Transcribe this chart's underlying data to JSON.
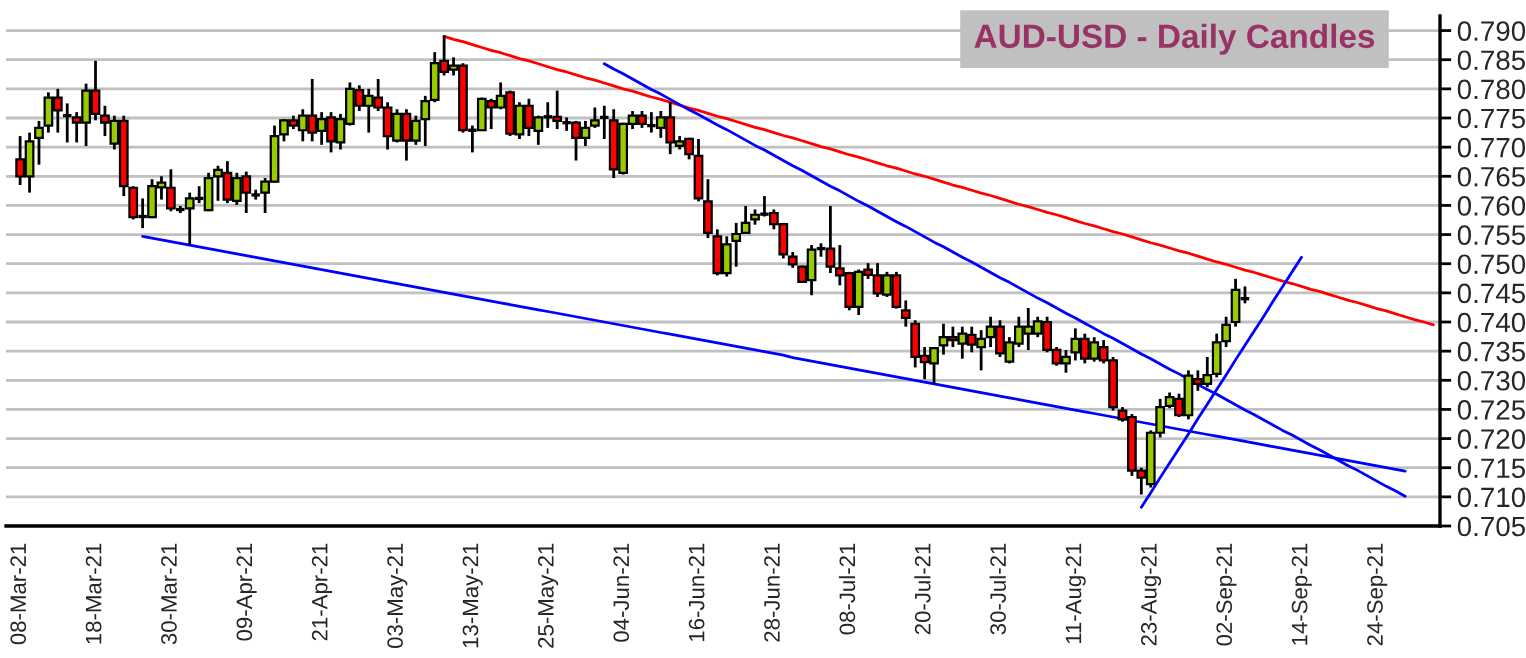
{
  "chart_data": {
    "type": "candlestick",
    "title": "AUD-USD - Daily Candles",
    "categories": [
      "08-Mar-21",
      null,
      null,
      null,
      null,
      null,
      null,
      null,
      "18-Mar-21",
      null,
      null,
      null,
      null,
      null,
      null,
      null,
      "30-Mar-21",
      null,
      null,
      null,
      null,
      null,
      null,
      null,
      "09-Apr-21",
      null,
      null,
      null,
      null,
      null,
      null,
      null,
      "21-Apr-21",
      null,
      null,
      null,
      null,
      null,
      null,
      null,
      "03-May-21",
      null,
      null,
      null,
      null,
      null,
      null,
      null,
      "13-May-21",
      null,
      null,
      null,
      null,
      null,
      null,
      null,
      "25-May-21",
      null,
      null,
      null,
      null,
      null,
      null,
      null,
      "04-Jun-21",
      null,
      null,
      null,
      null,
      null,
      null,
      null,
      "16-Jun-21",
      null,
      null,
      null,
      null,
      null,
      null,
      null,
      "28-Jun-21",
      null,
      null,
      null,
      null,
      null,
      null,
      null,
      "08-Jul-21",
      null,
      null,
      null,
      null,
      null,
      null,
      null,
      "20-Jul-21",
      null,
      null,
      null,
      null,
      null,
      null,
      null,
      "30-Jul-21",
      null,
      null,
      null,
      null,
      null,
      null,
      null,
      "11-Aug-21",
      null,
      null,
      null,
      null,
      null,
      null,
      null,
      "23-Aug-21",
      null,
      null,
      null,
      null,
      null,
      null,
      null,
      "02-Sep-21",
      null,
      null,
      null,
      null,
      null,
      null,
      null,
      "14-Sep-21",
      null,
      null,
      null,
      null,
      null,
      null,
      null,
      "24-Sep-21",
      null,
      null,
      null,
      null,
      null,
      null
    ],
    "ohlc": [
      [
        0.7679,
        0.7719,
        0.7635,
        0.765
      ],
      [
        0.765,
        0.7725,
        0.7622,
        0.771
      ],
      [
        0.7716,
        0.7745,
        0.767,
        0.7733
      ],
      [
        0.7737,
        0.7794,
        0.7725,
        0.7785
      ],
      [
        0.7785,
        0.78,
        0.7725,
        0.7763
      ],
      [
        0.7754,
        0.7775,
        0.7708,
        0.7754
      ],
      [
        0.7751,
        0.776,
        0.7708,
        0.7742
      ],
      [
        0.7742,
        0.7809,
        0.7702,
        0.7797
      ],
      [
        0.7797,
        0.7848,
        0.7746,
        0.7757
      ],
      [
        0.7754,
        0.7771,
        0.7719,
        0.7742
      ],
      [
        0.7706,
        0.7754,
        0.7696,
        0.7745
      ],
      [
        0.7745,
        0.7754,
        0.7616,
        0.7633
      ],
      [
        0.763,
        0.7633,
        0.7576,
        0.758
      ],
      [
        0.7581,
        0.7612,
        0.7561,
        0.7581
      ],
      [
        0.758,
        0.7645,
        0.7578,
        0.7633
      ],
      [
        0.7631,
        0.765,
        0.761,
        0.7639
      ],
      [
        0.763,
        0.7662,
        0.759,
        0.7595
      ],
      [
        0.7593,
        0.7599,
        0.7587,
        0.7593
      ],
      [
        0.7595,
        0.7622,
        0.7532,
        0.7612
      ],
      [
        0.7612,
        0.7633,
        0.7604,
        0.7612
      ],
      [
        0.7592,
        0.7656,
        0.759,
        0.7647
      ],
      [
        0.765,
        0.7668,
        0.7608,
        0.7661
      ],
      [
        0.7656,
        0.7676,
        0.7604,
        0.761
      ],
      [
        0.7608,
        0.7656,
        0.7601,
        0.7647
      ],
      [
        0.765,
        0.7658,
        0.7587,
        0.7622
      ],
      [
        0.7618,
        0.7627,
        0.761,
        0.7618
      ],
      [
        0.7622,
        0.7647,
        0.7587,
        0.7641
      ],
      [
        0.7641,
        0.7737,
        0.7639,
        0.7719
      ],
      [
        0.7722,
        0.7748,
        0.771,
        0.7746
      ],
      [
        0.7746,
        0.7754,
        0.7731,
        0.7737
      ],
      [
        0.7729,
        0.7765,
        0.771,
        0.7754
      ],
      [
        0.7754,
        0.7817,
        0.771,
        0.7725
      ],
      [
        0.7728,
        0.776,
        0.7704,
        0.7748
      ],
      [
        0.7751,
        0.776,
        0.7691,
        0.771
      ],
      [
        0.7708,
        0.7757,
        0.7696,
        0.7748
      ],
      [
        0.774,
        0.7811,
        0.7737,
        0.78
      ],
      [
        0.7798,
        0.7806,
        0.7762,
        0.7771
      ],
      [
        0.7771,
        0.78,
        0.7725,
        0.7788
      ],
      [
        0.7785,
        0.7817,
        0.7762,
        0.7768
      ],
      [
        0.7768,
        0.7777,
        0.7696,
        0.7719
      ],
      [
        0.7711,
        0.7765,
        0.7708,
        0.7757
      ],
      [
        0.7757,
        0.7765,
        0.7677,
        0.7711
      ],
      [
        0.7711,
        0.7754,
        0.7704,
        0.7745
      ],
      [
        0.7748,
        0.7788,
        0.7702,
        0.7779
      ],
      [
        0.7781,
        0.7863,
        0.7777,
        0.7844
      ],
      [
        0.7848,
        0.7892,
        0.7823,
        0.7829
      ],
      [
        0.7833,
        0.7854,
        0.7823,
        0.784
      ],
      [
        0.784,
        0.7844,
        0.7725,
        0.7729
      ],
      [
        0.7729,
        0.7737,
        0.7691,
        0.7729
      ],
      [
        0.7729,
        0.7785,
        0.7728,
        0.7783
      ],
      [
        0.7779,
        0.7783,
        0.7731,
        0.7768
      ],
      [
        0.7768,
        0.7811,
        0.7765,
        0.7788
      ],
      [
        0.7794,
        0.7797,
        0.7719,
        0.7723
      ],
      [
        0.7722,
        0.7777,
        0.7714,
        0.7771
      ],
      [
        0.7771,
        0.7783,
        0.7719,
        0.7733
      ],
      [
        0.7728,
        0.7754,
        0.7704,
        0.7751
      ],
      [
        0.7752,
        0.7777,
        0.7733,
        0.7752
      ],
      [
        0.7752,
        0.7797,
        0.7731,
        0.7745
      ],
      [
        0.7742,
        0.7751,
        0.7728,
        0.7742
      ],
      [
        0.7742,
        0.7745,
        0.7677,
        0.7716
      ],
      [
        0.7716,
        0.7745,
        0.7702,
        0.7733
      ],
      [
        0.7737,
        0.7768,
        0.7733,
        0.7746
      ],
      [
        0.7751,
        0.7771,
        0.7714,
        0.7751
      ],
      [
        0.7746,
        0.7765,
        0.7647,
        0.7662
      ],
      [
        0.7656,
        0.7742,
        0.7653,
        0.774
      ],
      [
        0.774,
        0.7762,
        0.7731,
        0.7754
      ],
      [
        0.7754,
        0.7762,
        0.7733,
        0.774
      ],
      [
        0.7737,
        0.776,
        0.7725,
        0.7737
      ],
      [
        0.7733,
        0.7762,
        0.7716,
        0.7751
      ],
      [
        0.7751,
        0.7777,
        0.7688,
        0.7708
      ],
      [
        0.7702,
        0.7719,
        0.7696,
        0.771
      ],
      [
        0.7714,
        0.7716,
        0.7679,
        0.7688
      ],
      [
        0.7685,
        0.7714,
        0.7607,
        0.7612
      ],
      [
        0.7607,
        0.7645,
        0.7544,
        0.7553
      ],
      [
        0.7547,
        0.7559,
        0.748,
        0.7484
      ],
      [
        0.7484,
        0.7547,
        0.7478,
        0.7533
      ],
      [
        0.7539,
        0.757,
        0.7495,
        0.7551
      ],
      [
        0.7553,
        0.7599,
        0.7551,
        0.757
      ],
      [
        0.7576,
        0.7593,
        0.7567,
        0.7584
      ],
      [
        0.7585,
        0.7616,
        0.7581,
        0.7585
      ],
      [
        0.7587,
        0.7593,
        0.7559,
        0.7568
      ],
      [
        0.7568,
        0.757,
        0.7509,
        0.7516
      ],
      [
        0.7512,
        0.752,
        0.7493,
        0.7499
      ],
      [
        0.7495,
        0.7497,
        0.7467,
        0.7469
      ],
      [
        0.7472,
        0.7532,
        0.7446,
        0.7524
      ],
      [
        0.7526,
        0.7535,
        0.7512,
        0.7526
      ],
      [
        0.7526,
        0.7599,
        0.7484,
        0.7495
      ],
      [
        0.7492,
        0.7532,
        0.7463,
        0.748
      ],
      [
        0.7484,
        0.7486,
        0.742,
        0.7426
      ],
      [
        0.7426,
        0.749,
        0.7412,
        0.7486
      ],
      [
        0.749,
        0.7501,
        0.7474,
        0.7481
      ],
      [
        0.748,
        0.7501,
        0.7443,
        0.7449
      ],
      [
        0.7447,
        0.7486,
        0.7443,
        0.748
      ],
      [
        0.748,
        0.7486,
        0.7423,
        0.7426
      ],
      [
        0.742,
        0.7437,
        0.7392,
        0.7407
      ],
      [
        0.7397,
        0.7403,
        0.7322,
        0.734
      ],
      [
        0.7342,
        0.7357,
        0.7302,
        0.7331
      ],
      [
        0.7329,
        0.7357,
        0.7294,
        0.7355
      ],
      [
        0.736,
        0.7397,
        0.7344,
        0.7374
      ],
      [
        0.7374,
        0.7392,
        0.7357,
        0.7369
      ],
      [
        0.7363,
        0.7392,
        0.7337,
        0.738
      ],
      [
        0.7378,
        0.7392,
        0.7348,
        0.7361
      ],
      [
        0.7357,
        0.7386,
        0.7317,
        0.7371
      ],
      [
        0.7374,
        0.7409,
        0.7357,
        0.7392
      ],
      [
        0.7392,
        0.7403,
        0.734,
        0.7346
      ],
      [
        0.7332,
        0.7374,
        0.7329,
        0.7365
      ],
      [
        0.7363,
        0.7409,
        0.7357,
        0.7392
      ],
      [
        0.738,
        0.7424,
        0.7352,
        0.7392
      ],
      [
        0.738,
        0.7409,
        0.7374,
        0.7401
      ],
      [
        0.74,
        0.7409,
        0.7348,
        0.7352
      ],
      [
        0.7352,
        0.7357,
        0.7325,
        0.7329
      ],
      [
        0.7329,
        0.7352,
        0.7313,
        0.734
      ],
      [
        0.7348,
        0.7389,
        0.7334,
        0.7371
      ],
      [
        0.7371,
        0.738,
        0.7329,
        0.7337
      ],
      [
        0.7337,
        0.7374,
        0.7332,
        0.7365
      ],
      [
        0.7357,
        0.7369,
        0.7329,
        0.7334
      ],
      [
        0.7334,
        0.734,
        0.7248,
        0.7254
      ],
      [
        0.7248,
        0.7254,
        0.7229,
        0.7233
      ],
      [
        0.7237,
        0.7242,
        0.7136,
        0.7145
      ],
      [
        0.7145,
        0.715,
        0.7104,
        0.7133
      ],
      [
        0.7122,
        0.7214,
        0.7116,
        0.721
      ],
      [
        0.721,
        0.7268,
        0.7202,
        0.7254
      ],
      [
        0.7256,
        0.7279,
        0.7252,
        0.7271
      ],
      [
        0.7268,
        0.7277,
        0.7237,
        0.724
      ],
      [
        0.724,
        0.7317,
        0.7233,
        0.7308
      ],
      [
        0.7302,
        0.7317,
        0.7282,
        0.7294
      ],
      [
        0.7294,
        0.734,
        0.7288,
        0.7309
      ],
      [
        0.7311,
        0.738,
        0.7305,
        0.7365
      ],
      [
        0.7367,
        0.7409,
        0.7357,
        0.7395
      ],
      [
        0.74,
        0.7474,
        0.7392,
        0.7455
      ],
      [
        0.744,
        0.7461,
        0.7432,
        0.744
      ],
      null,
      null,
      null,
      null,
      null,
      null,
      null,
      null,
      null,
      null,
      null,
      null,
      null,
      null,
      null,
      null,
      null,
      null,
      null,
      null
    ],
    "series": [
      {
        "type": "line",
        "color": "#ff0000",
        "values": [
          null,
          null,
          null,
          null,
          null,
          null,
          null,
          null,
          null,
          null,
          null,
          null,
          null,
          null,
          null,
          null,
          null,
          null,
          null,
          null,
          null,
          null,
          null,
          null,
          null,
          null,
          null,
          null,
          null,
          null,
          null,
          null,
          null,
          null,
          null,
          null,
          null,
          null,
          null,
          null,
          null,
          null,
          null,
          null,
          null,
          0.789,
          0.7885,
          0.7881,
          0.7876,
          0.7871,
          0.7866,
          0.7862,
          0.7857,
          0.7852,
          0.7848,
          0.7843,
          0.7838,
          0.7833,
          0.7829,
          0.7824,
          0.7819,
          0.7815,
          0.781,
          0.7805,
          0.78,
          0.7796,
          0.7791,
          0.7786,
          0.7782,
          0.7777,
          0.7772,
          0.7767,
          0.7763,
          0.7758,
          0.7753,
          0.7749,
          0.7744,
          0.7739,
          0.7734,
          0.773,
          0.7725,
          0.772,
          0.7716,
          0.7711,
          0.7706,
          0.7701,
          0.7697,
          0.7692,
          0.7687,
          0.7683,
          0.7678,
          0.7673,
          0.7668,
          0.7664,
          0.7659,
          0.7654,
          0.765,
          0.7645,
          0.764,
          0.7635,
          0.7631,
          0.7626,
          0.7621,
          0.7617,
          0.7612,
          0.7607,
          0.7602,
          0.7598,
          0.7593,
          0.7588,
          0.7584,
          0.7579,
          0.7574,
          0.7569,
          0.7565,
          0.756,
          0.7555,
          0.7551,
          0.7546,
          0.7541,
          0.7536,
          0.7532,
          0.7527,
          0.7522,
          0.7518,
          0.7513,
          0.7508,
          0.7503,
          0.7499,
          0.7494,
          0.7489,
          0.7485,
          0.748,
          0.7475,
          0.747,
          0.7466,
          0.7461,
          0.7456,
          0.7452,
          0.7447,
          0.7442,
          0.7437,
          0.7433,
          0.7428,
          0.7423,
          0.7419,
          0.7414,
          0.7409,
          0.7404,
          0.74,
          0.7395
        ]
      },
      {
        "type": "line",
        "color": "#0000ff",
        "values": [
          null,
          null,
          null,
          null,
          null,
          null,
          null,
          null,
          null,
          null,
          null,
          null,
          null,
          null,
          null,
          null,
          null,
          null,
          null,
          null,
          null,
          null,
          null,
          null,
          null,
          null,
          null,
          null,
          null,
          null,
          null,
          null,
          null,
          null,
          null,
          null,
          null,
          null,
          null,
          null,
          null,
          null,
          null,
          null,
          null,
          null,
          null,
          null,
          null,
          null,
          null,
          null,
          null,
          null,
          null,
          null,
          null,
          null,
          null,
          null,
          null,
          null,
          0.7843,
          0.7834,
          0.7826,
          0.7817,
          0.7808,
          0.7799,
          0.7791,
          0.7782,
          0.7773,
          0.7764,
          0.7756,
          0.7747,
          0.7738,
          0.773,
          0.7721,
          0.7712,
          0.7703,
          0.7695,
          0.7686,
          0.7677,
          0.7668,
          0.766,
          0.7651,
          0.7642,
          0.7633,
          0.7625,
          0.7616,
          0.7607,
          0.7599,
          0.759,
          0.7581,
          0.7572,
          0.7564,
          0.7555,
          0.7546,
          0.7537,
          0.7529,
          0.752,
          0.7511,
          0.7503,
          0.7494,
          0.7485,
          0.7476,
          0.7468,
          0.7459,
          0.745,
          0.7441,
          0.7433,
          0.7424,
          0.7415,
          0.7407,
          0.7398,
          0.7389,
          0.738,
          0.7372,
          0.7363,
          0.7354,
          0.7345,
          0.7337,
          0.7328,
          0.7319,
          0.7311,
          0.7302,
          0.7293,
          0.7284,
          0.7276,
          0.7267,
          0.7258,
          0.7249,
          0.7241,
          0.7232,
          0.7223,
          0.7214,
          0.7206,
          0.7197,
          0.7188,
          0.718,
          0.7171,
          0.7162,
          0.7153,
          0.7145,
          0.7136,
          0.7127,
          0.7118,
          0.711,
          0.7101,
          null,
          null,
          null
        ]
      },
      {
        "type": "line",
        "color": "#0000ff",
        "values": [
          null,
          null,
          null,
          null,
          null,
          null,
          null,
          null,
          null,
          null,
          null,
          null,
          null,
          0.7547,
          0.7544,
          0.7541,
          0.7538,
          0.7535,
          0.7532,
          0.7529,
          0.7526,
          0.7523,
          0.752,
          0.7517,
          0.7514,
          0.7511,
          0.7508,
          0.7505,
          0.7502,
          0.7499,
          0.7496,
          0.7493,
          0.749,
          0.7487,
          0.7484,
          0.7481,
          0.7478,
          0.7475,
          0.7472,
          0.7469,
          0.7466,
          0.7463,
          0.746,
          0.7457,
          0.7454,
          0.7451,
          0.7448,
          0.7445,
          0.7442,
          0.7439,
          0.7436,
          0.7433,
          0.743,
          0.7427,
          0.7424,
          0.7421,
          0.7418,
          0.7415,
          0.7412,
          0.7409,
          0.7406,
          0.7403,
          0.74,
          0.7397,
          0.7394,
          0.7391,
          0.7388,
          0.7385,
          0.7382,
          0.7379,
          0.7376,
          0.7373,
          0.737,
          0.7367,
          0.7364,
          0.7361,
          0.7358,
          0.7355,
          0.7352,
          0.7349,
          0.7346,
          0.7343,
          0.7339,
          0.7336,
          0.7333,
          0.733,
          0.7327,
          0.7324,
          0.7321,
          0.7318,
          0.7315,
          0.7312,
          0.7309,
          0.7306,
          0.7303,
          0.73,
          0.7297,
          0.7294,
          0.7291,
          0.7288,
          0.7285,
          0.7282,
          0.7279,
          0.7276,
          0.7273,
          0.727,
          0.7267,
          0.7264,
          0.7261,
          0.7258,
          0.7255,
          0.7252,
          0.7249,
          0.7246,
          0.7243,
          0.724,
          0.7237,
          0.7234,
          0.7231,
          0.7228,
          0.7225,
          0.7222,
          0.7219,
          0.7216,
          0.7213,
          0.721,
          0.7207,
          0.7204,
          0.7201,
          0.7198,
          0.7195,
          0.7192,
          0.7189,
          0.7186,
          0.7183,
          0.718,
          0.7177,
          0.7174,
          0.7171,
          0.7168,
          0.7165,
          0.7162,
          0.7159,
          0.7156,
          0.7153,
          0.715,
          0.7147,
          0.7144,
          null,
          null,
          null
        ]
      },
      {
        "type": "line",
        "color": "#0000ff",
        "values": [
          null,
          null,
          null,
          null,
          null,
          null,
          null,
          null,
          null,
          null,
          null,
          null,
          null,
          null,
          null,
          null,
          null,
          null,
          null,
          null,
          null,
          null,
          null,
          null,
          null,
          null,
          null,
          null,
          null,
          null,
          null,
          null,
          null,
          null,
          null,
          null,
          null,
          null,
          null,
          null,
          null,
          null,
          null,
          null,
          null,
          null,
          null,
          null,
          null,
          null,
          null,
          null,
          null,
          null,
          null,
          null,
          null,
          null,
          null,
          null,
          null,
          null,
          null,
          null,
          null,
          null,
          null,
          null,
          null,
          null,
          null,
          null,
          null,
          null,
          null,
          null,
          null,
          null,
          null,
          null,
          null,
          null,
          null,
          null,
          null,
          null,
          null,
          null,
          null,
          null,
          null,
          null,
          null,
          null,
          null,
          null,
          null,
          null,
          null,
          null,
          null,
          null,
          null,
          null,
          null,
          null,
          null,
          null,
          null,
          null,
          null,
          null,
          null,
          null,
          null,
          null,
          null,
          null,
          null,
          0.7082,
          0.7107,
          0.7133,
          0.7158,
          0.7183,
          0.7208,
          0.7234,
          0.7259,
          0.7284,
          0.7309,
          0.7335,
          0.736,
          0.7385,
          0.741,
          0.7436,
          0.7461,
          0.7486,
          0.7511,
          null,
          null,
          null,
          null,
          null,
          null,
          null,
          null,
          null,
          null,
          null,
          null,
          null,
          null
        ]
      }
    ],
    "ylim": [
      0.705,
      0.7925
    ],
    "yticks": [
      {
        "value": 0.705,
        "label": "0.705"
      },
      {
        "value": 0.71,
        "label": "0.710"
      },
      {
        "value": 0.715,
        "label": "0.715"
      },
      {
        "value": 0.72,
        "label": "0.720"
      },
      {
        "value": 0.725,
        "label": "0.725"
      },
      {
        "value": 0.73,
        "label": "0.730"
      },
      {
        "value": 0.735,
        "label": "0.735"
      },
      {
        "value": 0.74,
        "label": "0.740"
      },
      {
        "value": 0.745,
        "label": "0.745"
      },
      {
        "value": 0.75,
        "label": "0.750"
      },
      {
        "value": 0.755,
        "label": "0.755"
      },
      {
        "value": 0.76,
        "label": "0.760"
      },
      {
        "value": 0.765,
        "label": "0.765"
      },
      {
        "value": 0.77,
        "label": "0.770"
      },
      {
        "value": 0.775,
        "label": "0.775"
      },
      {
        "value": 0.78,
        "label": "0.780"
      },
      {
        "value": 0.785,
        "label": "0.785"
      },
      {
        "value": 0.79,
        "label": "0.790"
      }
    ],
    "grid": "y"
  }
}
